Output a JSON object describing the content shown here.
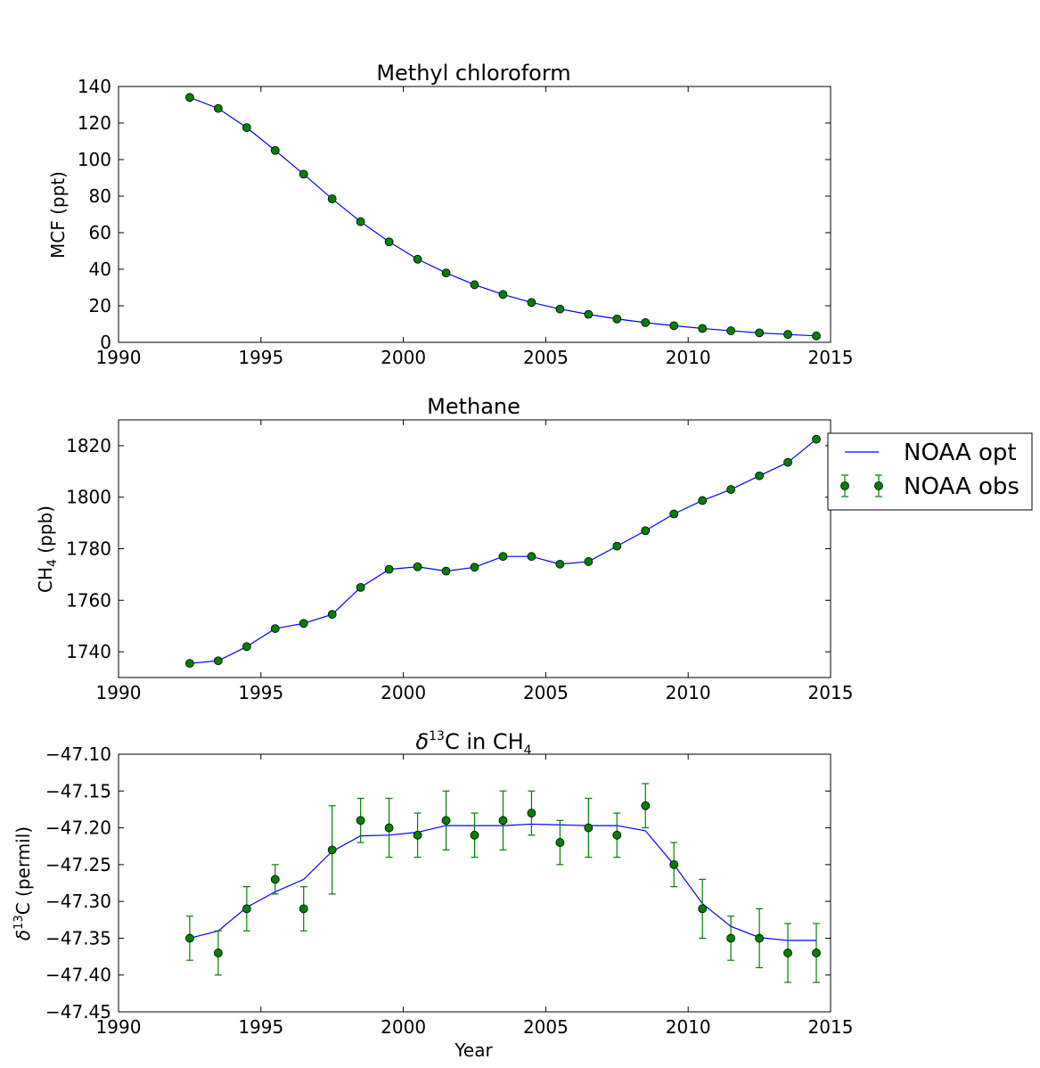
{
  "chart_data": [
    {
      "type": "line",
      "title": "Methyl chloroform",
      "xlabel": "",
      "ylabel": "MCF (ppt)",
      "xlim": [
        1990,
        2015
      ],
      "ylim": [
        0,
        140
      ],
      "xticks": [
        "1990",
        "1995",
        "2000",
        "2005",
        "2010",
        "2015"
      ],
      "yticks": [
        "0",
        "20",
        "40",
        "60",
        "80",
        "100",
        "120",
        "140"
      ],
      "x": [
        1992.5,
        1993.5,
        1994.5,
        1995.5,
        1996.5,
        1997.5,
        1998.5,
        1999.5,
        2000.5,
        2001.5,
        2002.5,
        2003.5,
        2004.5,
        2005.5,
        2006.5,
        2007.5,
        2008.5,
        2009.5,
        2010.5,
        2011.5,
        2012.5,
        2013.5,
        2014.5
      ],
      "series": [
        {
          "name": "NOAA opt",
          "kind": "line",
          "color": "#0000ff",
          "values": [
            134,
            128,
            117.5,
            105,
            92,
            78.5,
            66,
            55,
            45.5,
            38,
            31.5,
            26.2,
            21.8,
            18.2,
            15.3,
            12.8,
            10.8,
            9.1,
            7.6,
            6.3,
            5.2,
            4.3,
            3.5
          ]
        },
        {
          "name": "NOAA obs",
          "kind": "points",
          "color": "#008000",
          "values": [
            134,
            128,
            117.5,
            105,
            92,
            78.5,
            66,
            55,
            45.5,
            38,
            31.5,
            26.2,
            21.8,
            18.2,
            15.3,
            12.8,
            10.8,
            9.1,
            7.6,
            6.3,
            5.2,
            4.3,
            3.5
          ]
        }
      ]
    },
    {
      "type": "line",
      "title": "Methane",
      "xlabel": "",
      "ylabel_main": "CH",
      "ylabel_sub": "4",
      "ylabel_tail": " (ppb)",
      "xlim": [
        1990,
        2015
      ],
      "ylim": [
        1730,
        1830
      ],
      "xticks": [
        "1990",
        "1995",
        "2000",
        "2005",
        "2010",
        "2015"
      ],
      "yticks": [
        "1740",
        "1760",
        "1780",
        "1800",
        "1820"
      ],
      "ytick_values": [
        1740,
        1760,
        1780,
        1800,
        1820
      ],
      "x": [
        1992.5,
        1993.5,
        1994.5,
        1995.5,
        1996.5,
        1997.5,
        1998.5,
        1999.5,
        2000.5,
        2001.5,
        2002.5,
        2003.5,
        2004.5,
        2005.5,
        2006.5,
        2007.5,
        2008.5,
        2009.5,
        2010.5,
        2011.5,
        2012.5,
        2013.5,
        2014.5
      ],
      "series": [
        {
          "name": "NOAA opt",
          "kind": "line",
          "color": "#0000ff",
          "values": [
            1735.5,
            1736.5,
            1742,
            1749,
            1751,
            1754.5,
            1765,
            1772,
            1773,
            1771.3,
            1772.8,
            1777,
            1777,
            1774,
            1775,
            1781,
            1787,
            1793.5,
            1798.7,
            1803,
            1808.3,
            1813.5,
            1822.5
          ]
        },
        {
          "name": "NOAA obs",
          "kind": "points",
          "color": "#008000",
          "values": [
            1735.5,
            1736.5,
            1742,
            1749,
            1751,
            1754.5,
            1765,
            1772,
            1773,
            1771.3,
            1772.8,
            1777,
            1777,
            1774,
            1775,
            1781,
            1787,
            1793.5,
            1798.7,
            1803,
            1808.3,
            1813.5,
            1822.5
          ]
        }
      ],
      "legend": {
        "placement": "outside-right",
        "entries": [
          {
            "label": "NOAA opt",
            "kind": "line",
            "color": "#0000ff"
          },
          {
            "label": "NOAA obs",
            "kind": "errorbar",
            "color": "#008000"
          }
        ]
      }
    },
    {
      "type": "line",
      "title_prefix": "δ",
      "title_sup": "13",
      "title_mid": "C in CH",
      "title_sub": "4",
      "xlabel": "Year",
      "ylabel_prefix": "δ",
      "ylabel_sup": "13",
      "ylabel_tail": "C (permil)",
      "xlim": [
        1990,
        2015
      ],
      "ylim": [
        -47.45,
        -47.1
      ],
      "xticks": [
        "1990",
        "1995",
        "2000",
        "2005",
        "2010",
        "2015"
      ],
      "yticks": [
        "−47.45",
        "−47.40",
        "−47.35",
        "−47.30",
        "−47.25",
        "−47.20",
        "−47.15",
        "−47.10"
      ],
      "ytick_values": [
        -47.45,
        -47.4,
        -47.35,
        -47.3,
        -47.25,
        -47.2,
        -47.15,
        -47.1
      ],
      "x": [
        1992.5,
        1993.5,
        1994.5,
        1995.5,
        1996.5,
        1997.5,
        1998.5,
        1999.5,
        2000.5,
        2001.5,
        2002.5,
        2003.5,
        2004.5,
        2005.5,
        2006.5,
        2007.5,
        2008.5,
        2009.5,
        2010.5,
        2011.5,
        2012.5,
        2013.5,
        2014.5
      ],
      "series": [
        {
          "name": "NOAA opt",
          "kind": "line",
          "color": "#0000ff",
          "values": [
            -47.35,
            -47.34,
            -47.308,
            -47.287,
            -47.27,
            -47.232,
            -47.211,
            -47.21,
            -47.206,
            -47.197,
            -47.197,
            -47.197,
            -47.195,
            -47.196,
            -47.197,
            -47.197,
            -47.204,
            -47.25,
            -47.303,
            -47.334,
            -47.349,
            -47.353,
            -47.353
          ]
        },
        {
          "name": "NOAA obs",
          "kind": "errorbar",
          "color": "#008000",
          "values": [
            -47.35,
            -47.37,
            -47.31,
            -47.27,
            -47.31,
            -47.23,
            -47.19,
            -47.2,
            -47.21,
            -47.19,
            -47.21,
            -47.19,
            -47.18,
            -47.22,
            -47.2,
            -47.21,
            -47.17,
            -47.25,
            -47.31,
            -47.35,
            -47.35,
            -47.37,
            -47.37
          ],
          "errors": [
            0.03,
            0.03,
            0.03,
            0.02,
            0.03,
            0.06,
            0.03,
            0.04,
            0.03,
            0.04,
            0.03,
            0.04,
            0.03,
            0.03,
            0.04,
            0.03,
            0.03,
            0.03,
            0.04,
            0.03,
            0.04,
            0.04,
            0.04
          ]
        }
      ]
    }
  ]
}
